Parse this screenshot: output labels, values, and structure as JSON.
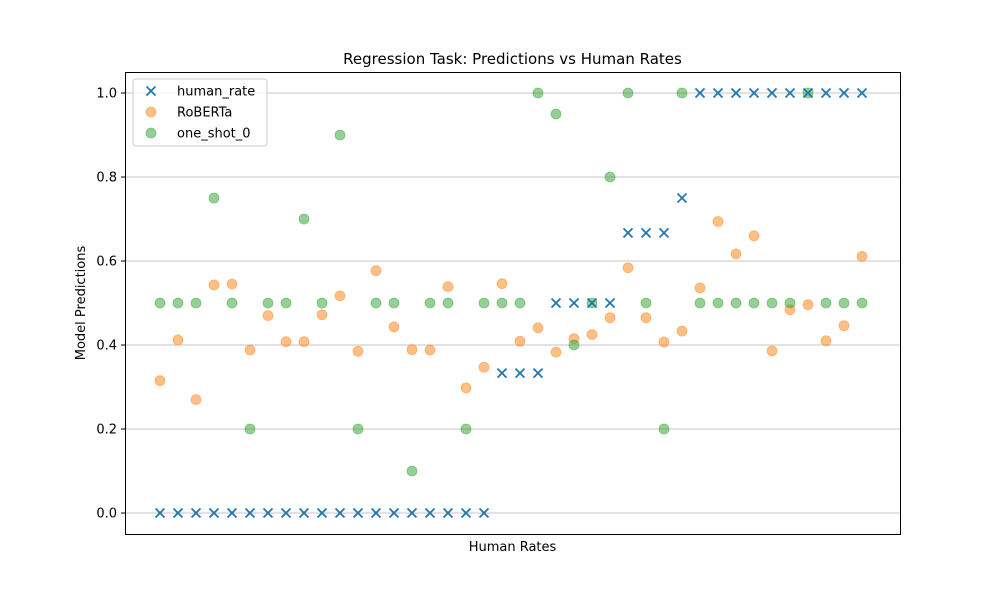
{
  "chart_data": {
    "type": "scatter",
    "title": "Regression Task: Predictions vs Human Rates",
    "xlabel": "Human Rates",
    "ylabel": "Model Predictions",
    "ylim": [
      -0.05,
      1.05
    ],
    "yticks": [
      0.0,
      0.2,
      0.4,
      0.6,
      0.8,
      1.0
    ],
    "ytick_labels": [
      "0.0",
      "0.2",
      "0.4",
      "0.6",
      "0.8",
      "1.0"
    ],
    "xticks_visible": false,
    "grid": "y-axis",
    "legend_position": "top-left",
    "n_points": 40,
    "series": [
      {
        "name": "human_rate",
        "marker": "x",
        "color": "#1f77b4",
        "values": [
          0,
          0,
          0,
          0,
          0,
          0,
          0,
          0,
          0,
          0,
          0,
          0,
          0,
          0,
          0,
          0,
          0,
          0,
          0,
          0.333,
          0.333,
          0.333,
          0.5,
          0.5,
          0.5,
          0.5,
          0.667,
          0.667,
          0.667,
          0.75,
          1,
          1,
          1,
          1,
          1,
          1,
          1,
          1,
          1,
          1
        ]
      },
      {
        "name": "RoBERTa",
        "marker": "o",
        "color": "#ff7f0e",
        "values": [
          0.315,
          0.412,
          0.27,
          0.543,
          0.545,
          0.388,
          0.47,
          0.408,
          0.408,
          0.472,
          0.517,
          0.385,
          0.577,
          0.443,
          0.389,
          0.388,
          0.539,
          0.298,
          0.347,
          0.546,
          0.409,
          0.441,
          0.383,
          0.415,
          0.425,
          0.465,
          0.584,
          0.465,
          0.407,
          0.433,
          0.536,
          0.694,
          0.617,
          0.66,
          0.386,
          0.484,
          0.496,
          0.41,
          0.446,
          0.611
        ]
      },
      {
        "name": "one_shot_0",
        "marker": "o",
        "color": "#2ca02c",
        "values": [
          0.5,
          0.5,
          0.5,
          0.75,
          0.5,
          0.2,
          0.5,
          0.5,
          0.7,
          0.5,
          0.9,
          0.2,
          0.5,
          0.5,
          0.1,
          0.5,
          0.5,
          0.2,
          0.5,
          0.5,
          0.5,
          1.0,
          0.95,
          0.4,
          0.5,
          0.8,
          1.0,
          0.5,
          0.2,
          1.0,
          0.5,
          0.5,
          0.5,
          0.5,
          0.5,
          0.5,
          1.0,
          0.5,
          0.5,
          0.5
        ]
      }
    ]
  }
}
